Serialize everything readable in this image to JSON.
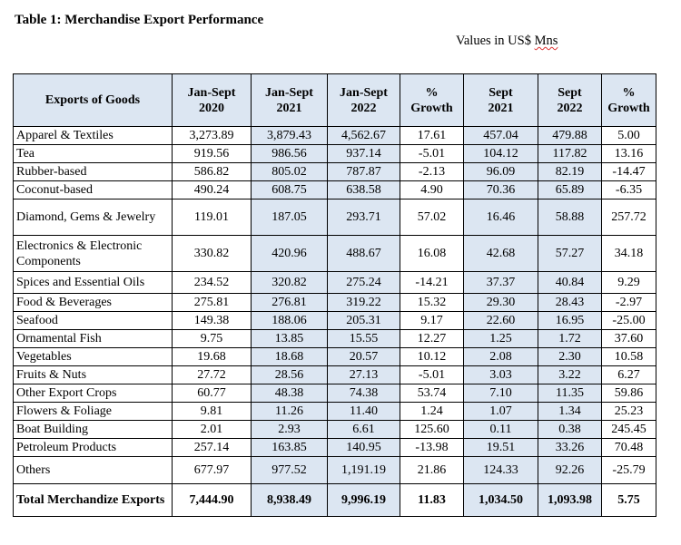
{
  "title": "Table 1: Merchandise Export Performance",
  "units_prefix": "Values in US$ ",
  "units_suffix": "Mns",
  "headers": [
    [
      "Exports of Goods"
    ],
    [
      "Jan-Sept",
      "2020"
    ],
    [
      "Jan-Sept",
      "2021"
    ],
    [
      "Jan-Sept",
      "2022"
    ],
    [
      "%",
      "Growth"
    ],
    [
      "Sept",
      "2021"
    ],
    [
      "Sept",
      "2022"
    ],
    [
      "%",
      "Growth"
    ]
  ],
  "rows": [
    [
      "Apparel & Textiles",
      "3,273.89",
      "3,879.43",
      "4,562.67",
      "17.61",
      "457.04",
      "479.88",
      "5.00"
    ],
    [
      "Tea",
      "919.56",
      "986.56",
      "937.14",
      "-5.01",
      "104.12",
      "117.82",
      "13.16"
    ],
    [
      "Rubber-based",
      "586.82",
      "805.02",
      "787.87",
      "-2.13",
      "96.09",
      "82.19",
      "-14.47"
    ],
    [
      "Coconut-based",
      "490.24",
      "608.75",
      "638.58",
      "4.90",
      "70.36",
      "65.89",
      "-6.35"
    ],
    [
      "Diamond, Gems & Jewelry",
      "119.01",
      "187.05",
      "293.71",
      "57.02",
      "16.46",
      "58.88",
      "257.72"
    ],
    [
      "Electronics & Electronic Components",
      "330.82",
      "420.96",
      "488.67",
      "16.08",
      "42.68",
      "57.27",
      "34.18"
    ],
    [
      "Spices and Essential Oils",
      "234.52",
      "320.82",
      "275.24",
      "-14.21",
      "37.37",
      "40.84",
      "9.29"
    ],
    [
      "Food & Beverages",
      "275.81",
      "276.81",
      "319.22",
      "15.32",
      "29.30",
      "28.43",
      "-2.97"
    ],
    [
      "Seafood",
      "149.38",
      "188.06",
      "205.31",
      "9.17",
      "22.60",
      "16.95",
      "-25.00"
    ],
    [
      "Ornamental Fish",
      "9.75",
      "13.85",
      "15.55",
      "12.27",
      "1.25",
      "1.72",
      "37.60"
    ],
    [
      "Vegetables",
      "19.68",
      "18.68",
      "20.57",
      "10.12",
      "2.08",
      "2.30",
      "10.58"
    ],
    [
      "Fruits & Nuts",
      "27.72",
      "28.56",
      "27.13",
      "-5.01",
      "3.03",
      "3.22",
      "6.27"
    ],
    [
      "Other Export Crops",
      "60.77",
      "48.38",
      "74.38",
      "53.74",
      "7.10",
      "11.35",
      "59.86"
    ],
    [
      "Flowers & Foliage",
      "9.81",
      "11.26",
      "11.40",
      "1.24",
      "1.07",
      "1.34",
      "25.23"
    ],
    [
      "Boat Building",
      "2.01",
      "2.93",
      "6.61",
      "125.60",
      "0.11",
      "0.38",
      "245.45"
    ],
    [
      "Petroleum Products",
      "257.14",
      "163.85",
      "140.95",
      "-13.98",
      "19.51",
      "33.26",
      "70.48"
    ],
    [
      "Others",
      "677.97",
      "977.52",
      "1,191.19",
      "21.86",
      "124.33",
      "92.26",
      "-25.79"
    ]
  ],
  "total": [
    "Total Merchandize Exports",
    "7,444.90",
    "8,938.49",
    "9,996.19",
    "11.83",
    "1,034.50",
    "1,093.98",
    "5.75"
  ],
  "shaded_columns": [
    2,
    3,
    5,
    6
  ]
}
